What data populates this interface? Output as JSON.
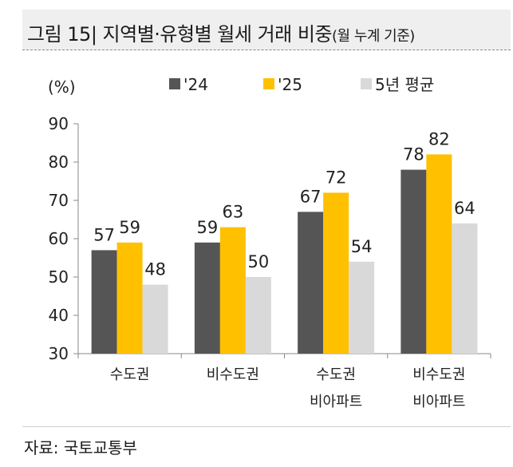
{
  "header": {
    "title_main": "그림 15| 지역별·유형별 월세 거래 비중",
    "title_sub": "(월 누계 기준)"
  },
  "source": "자료: 국토교통부",
  "chart_data": {
    "type": "bar",
    "unit_label": "(%)",
    "categories": [
      [
        "수도권"
      ],
      [
        "비수도권"
      ],
      [
        "수도권",
        "비아파트"
      ],
      [
        "비수도권",
        "비아파트"
      ]
    ],
    "series": [
      {
        "name": "'24",
        "color": "#555555",
        "values": [
          57,
          59,
          67,
          78
        ]
      },
      {
        "name": "'25",
        "color": "#ffc000",
        "values": [
          59,
          63,
          72,
          82
        ]
      },
      {
        "name": "5년 평균",
        "color": "#d9d9d9",
        "values": [
          48,
          50,
          54,
          64
        ]
      }
    ],
    "ylim": [
      30,
      90
    ],
    "yticks": [
      30,
      40,
      50,
      60,
      70,
      80,
      90
    ],
    "legend_position": "top",
    "grid": false
  }
}
